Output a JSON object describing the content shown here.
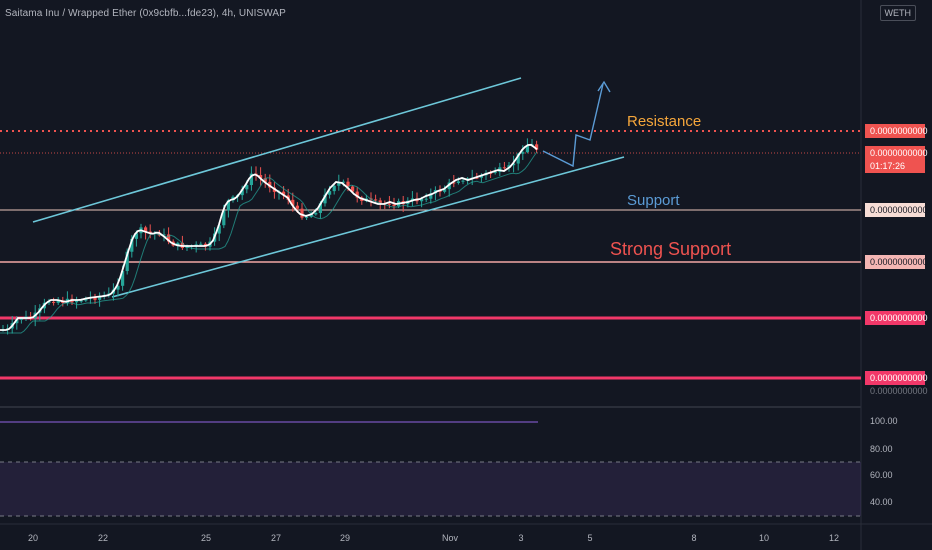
{
  "symbol_title": "Saitama Inu / Wrapped Ether (0x9cbfb...fde23), 4h, UNISWAP",
  "quote_currency": "WETH",
  "colors": {
    "background": "#131722",
    "bull": "#26a69a",
    "bear": "#ef5350",
    "channel": "#6dc7d9",
    "resistance": "#ef5350",
    "strong_support": "#f23869",
    "ma": "#ffffff",
    "rsi": "#7e57c2",
    "projection": "#5b9bd5"
  },
  "annotations": {
    "resistance": "Resistance",
    "support": "Support",
    "strong_support": "Strong Support"
  },
  "price_scale": {
    "resistance_label": "0.0000000000",
    "current_label": "0.0000000000",
    "countdown": "01:17:26",
    "support_label": "0.0000000000",
    "strong_support_label": "0.0000000000",
    "support_low1_label": "0.0000000000",
    "support_low2_label": "0.0000000000",
    "partial_label": "0.0000000000"
  },
  "rsi_scale": [
    "100.00",
    "80.00",
    "60.00",
    "40.00"
  ],
  "chart_data": {
    "type": "candlestick",
    "interval": "4h",
    "x_ticks": [
      "20",
      "22",
      "25",
      "27",
      "29",
      "Nov",
      "3",
      "5",
      "8",
      "10",
      "12"
    ],
    "rsi_levels": [
      70,
      30
    ],
    "close_path": [
      [
        0,
        330
      ],
      [
        8,
        330
      ],
      [
        12,
        326
      ],
      [
        18,
        318
      ],
      [
        25,
        318
      ],
      [
        32,
        318
      ],
      [
        38,
        313
      ],
      [
        44,
        305
      ],
      [
        50,
        300
      ],
      [
        58,
        300
      ],
      [
        65,
        302
      ],
      [
        72,
        300
      ],
      [
        80,
        300
      ],
      [
        88,
        298
      ],
      [
        96,
        297
      ],
      [
        104,
        296
      ],
      [
        110,
        295
      ],
      [
        116,
        288
      ],
      [
        120,
        278
      ],
      [
        124,
        265
      ],
      [
        128,
        252
      ],
      [
        132,
        240
      ],
      [
        136,
        232
      ],
      [
        140,
        230
      ],
      [
        146,
        232
      ],
      [
        152,
        234
      ],
      [
        158,
        232
      ],
      [
        162,
        235
      ],
      [
        166,
        238
      ],
      [
        170,
        242
      ],
      [
        176,
        245
      ],
      [
        182,
        246
      ],
      [
        190,
        246
      ],
      [
        198,
        246
      ],
      [
        206,
        246
      ],
      [
        212,
        243
      ],
      [
        218,
        228
      ],
      [
        222,
        214
      ],
      [
        226,
        203
      ],
      [
        230,
        200
      ],
      [
        234,
        199
      ],
      [
        238,
        196
      ],
      [
        242,
        190
      ],
      [
        246,
        184
      ],
      [
        250,
        177
      ],
      [
        254,
        174
      ],
      [
        258,
        176
      ],
      [
        262,
        180
      ],
      [
        266,
        183
      ],
      [
        270,
        186
      ],
      [
        276,
        190
      ],
      [
        282,
        194
      ],
      [
        288,
        198
      ],
      [
        292,
        205
      ],
      [
        296,
        210
      ],
      [
        300,
        214
      ],
      [
        306,
        216
      ],
      [
        312,
        214
      ],
      [
        318,
        208
      ],
      [
        324,
        198
      ],
      [
        330,
        188
      ],
      [
        336,
        182
      ],
      [
        342,
        183
      ],
      [
        348,
        188
      ],
      [
        354,
        194
      ],
      [
        360,
        198
      ],
      [
        366,
        200
      ],
      [
        372,
        202
      ],
      [
        378,
        204
      ],
      [
        384,
        204
      ],
      [
        390,
        202
      ],
      [
        396,
        204
      ],
      [
        402,
        203
      ],
      [
        408,
        202
      ],
      [
        414,
        200
      ],
      [
        420,
        199
      ],
      [
        426,
        196
      ],
      [
        432,
        194
      ],
      [
        438,
        191
      ],
      [
        444,
        189
      ],
      [
        450,
        184
      ],
      [
        456,
        180
      ],
      [
        462,
        178
      ],
      [
        468,
        180
      ],
      [
        474,
        178
      ],
      [
        480,
        176
      ],
      [
        486,
        174
      ],
      [
        492,
        172
      ],
      [
        498,
        170
      ],
      [
        504,
        171
      ],
      [
        510,
        167
      ],
      [
        514,
        162
      ],
      [
        518,
        156
      ],
      [
        522,
        150
      ],
      [
        526,
        146
      ],
      [
        530,
        144
      ],
      [
        534,
        147
      ],
      [
        538,
        150
      ]
    ]
  }
}
